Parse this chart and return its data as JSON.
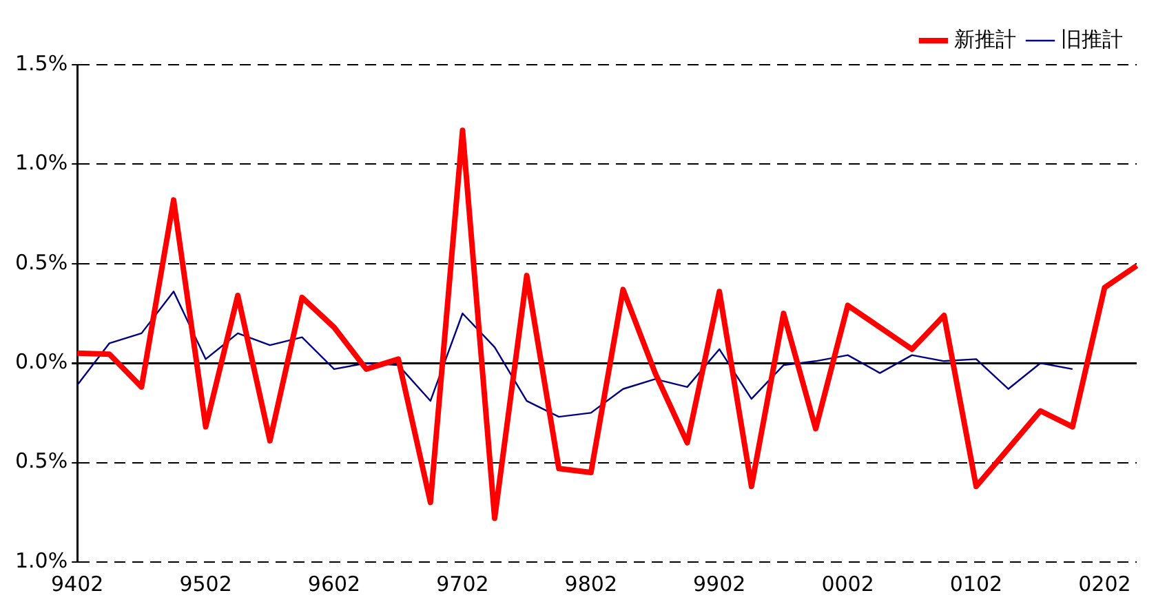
{
  "chart_data": {
    "type": "line",
    "categories": [
      "9402",
      null,
      null,
      null,
      "9502",
      null,
      null,
      null,
      "9602",
      null,
      null,
      null,
      "9702",
      null,
      null,
      null,
      "9802",
      null,
      null,
      null,
      "9902",
      null,
      null,
      null,
      "0002",
      null,
      null,
      null,
      "0102",
      null,
      null,
      null,
      "0202",
      null
    ],
    "series": [
      {
        "name": "新推計",
        "color": "#ff0000",
        "values": [
          0.05,
          0.045,
          -0.12,
          0.82,
          -0.32,
          0.34,
          -0.39,
          0.33,
          0.18,
          -0.03,
          0.02,
          -0.7,
          1.17,
          -0.78,
          0.44,
          -0.53,
          -0.55,
          0.37,
          -0.05,
          -0.4,
          0.36,
          -0.62,
          0.25,
          -0.33,
          0.29,
          0.18,
          0.07,
          0.24,
          -0.62,
          -0.43,
          -0.24,
          -0.32,
          0.38,
          0.49
        ]
      },
      {
        "name": "旧推計",
        "color": "#000080",
        "values": [
          -0.11,
          0.1,
          0.15,
          0.36,
          0.02,
          0.15,
          0.09,
          0.13,
          -0.03,
          0.0,
          -0.01,
          -0.19,
          0.25,
          0.08,
          -0.19,
          -0.27,
          -0.25,
          -0.13,
          -0.08,
          -0.12,
          0.07,
          -0.18,
          -0.01,
          0.01,
          0.04,
          -0.05,
          0.04,
          0.01,
          0.02,
          -0.13,
          0.0,
          -0.03,
          null,
          null
        ]
      }
    ],
    "ylim": [
      -1.0,
      1.5
    ],
    "yticks": [
      {
        "value": -1.0,
        "label": "1.0%"
      },
      {
        "value": -0.5,
        "label": "0.5%"
      },
      {
        "value": 0,
        "label": "0.0%"
      },
      {
        "value": 0.5,
        "label": "0.5%"
      },
      {
        "value": 1.0,
        "label": "1.0%"
      },
      {
        "value": 1.5,
        "label": "1.5%"
      }
    ],
    "grid": "y",
    "legend": "top right",
    "marker": "none",
    "line_style": "solid"
  }
}
